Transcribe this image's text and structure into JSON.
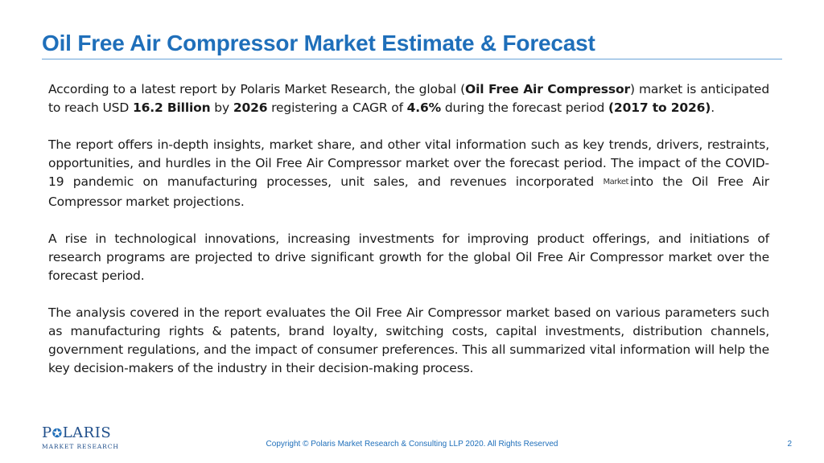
{
  "slide": {
    "title": "Oil Free Air Compressor Market Estimate & Forecast",
    "paragraph1": {
      "t1": "According to a latest report by Polaris Market Research, the global (",
      "b1": "Oil Free Air Compressor",
      "t2": ") market is anticipated to reach USD ",
      "b2": "16.2 Billion",
      "t3": " by ",
      "b3": "2026",
      "t4": "  registering a CAGR of ",
      "b4": "4.6%",
      "t5": " during the  forecast period ",
      "b5": "(2017 to 2026)",
      "t6": "."
    },
    "paragraph2": {
      "t1": "The report offers in-depth insights, market share, and other vital information such as key trends, drivers, restraints, opportunities, and hurdles in the Oil Free Air Compressor market over the forecast period. The impact of the COVID-19 pandemic on manufacturing processes, unit sales, and revenues incorporated",
      "stray": "Market",
      "t2": "into the  Oil Free Air Compressor market projections."
    },
    "paragraph3": "A rise in technological innovations, increasing investments for improving product offerings, and initiations of research programs are projected to drive significant growth for the global Oil Free Air Compressor market over the forecast period.",
    "paragraph4": "The analysis covered in the report evaluates the Oil Free Air Compressor market based on various parameters such as manufacturing rights & patents, brand loyalty, switching costs,  capital investments, distribution channels, government regulations, and the impact of consumer preferences. This all summarized vital information will help the key decision-makers of the industry in their decision-making process."
  },
  "logo": {
    "word_start": "P",
    "word_end": "LARIS",
    "subtitle": "MARKET RESEARCH",
    "star_glyph": "✪"
  },
  "footer": {
    "copyright": "Copyright © Polaris Market Research & Consulting LLP 2020. All Rights Reserved",
    "page_number": "2"
  },
  "colors": {
    "title": "#1f6fba",
    "rule": "#6aa3d8",
    "logo": "#1f4e8a",
    "body_text": "#1a1a1a"
  }
}
